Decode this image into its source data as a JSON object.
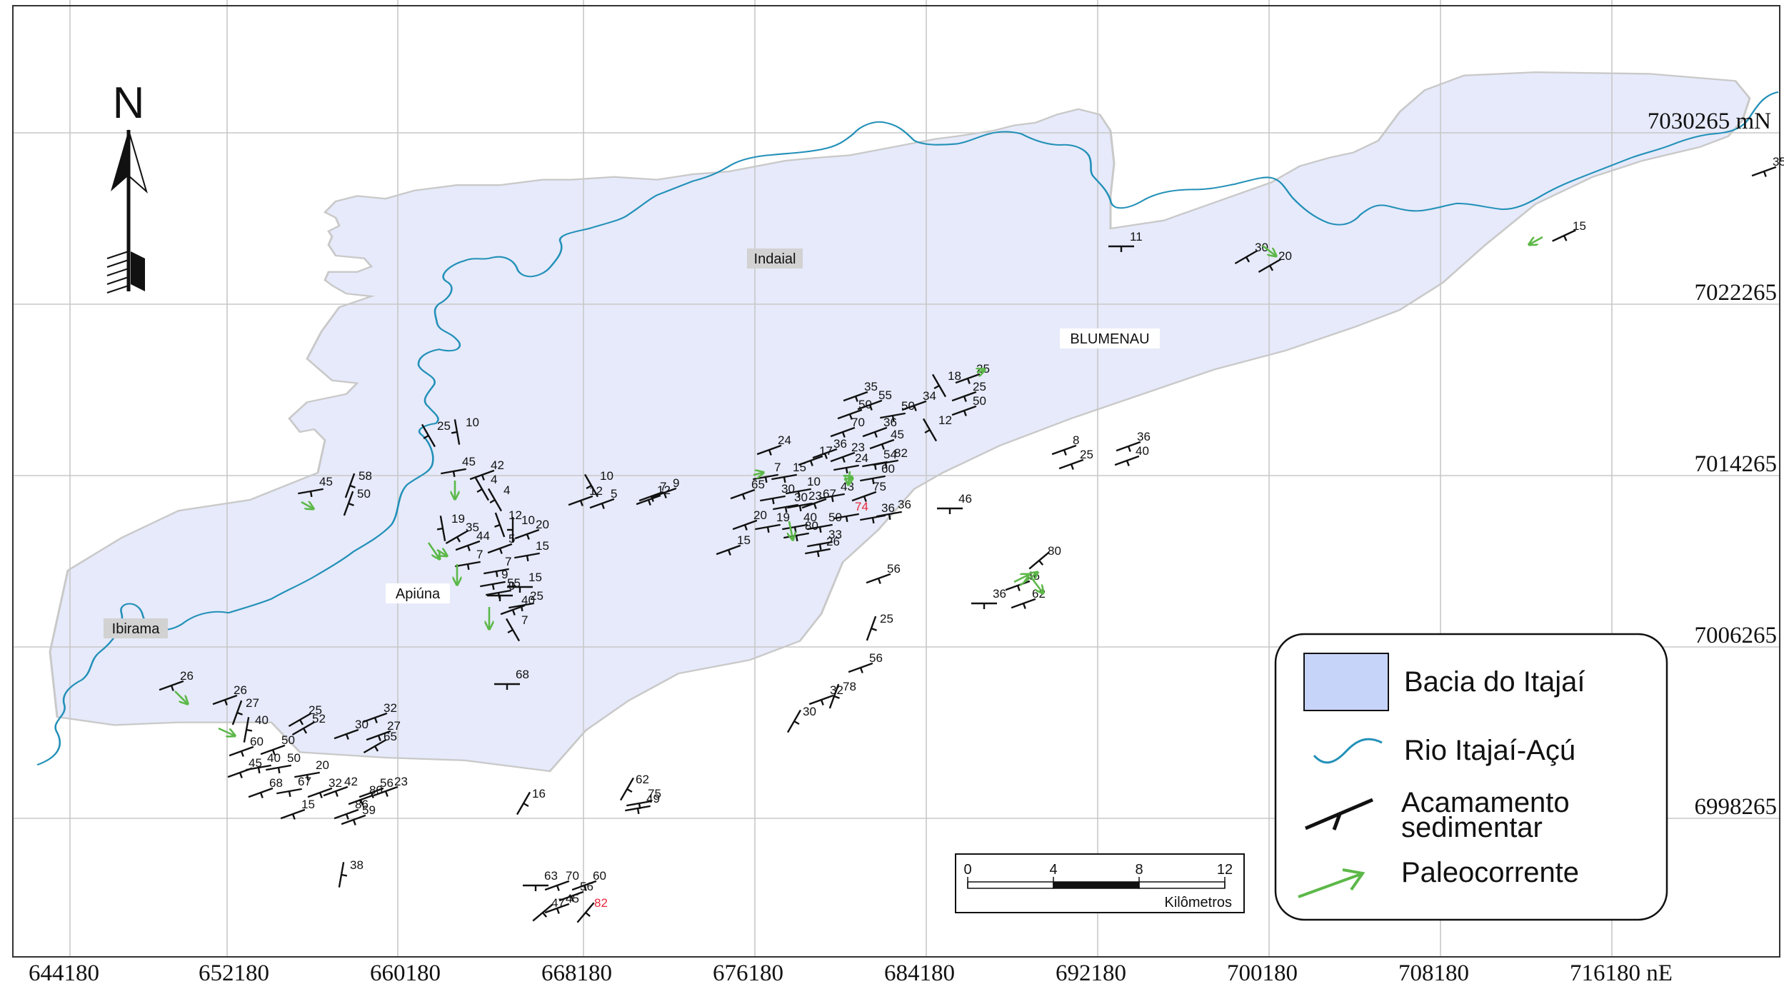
{
  "map": {
    "north_label": "N",
    "easting_labels": [
      "644180",
      "652180",
      "660180",
      "668180",
      "676180",
      "684180",
      "692180",
      "700180",
      "708180",
      "716180 nE"
    ],
    "northing_labels": [
      "7030265 mN",
      "7022265",
      "7014265",
      "7006265",
      "6998265"
    ],
    "towns": [
      {
        "name": "Indaial",
        "boxed": true
      },
      {
        "name": "BLUMENAU",
        "boxed": false
      },
      {
        "name": "Apiúna",
        "boxed": false
      },
      {
        "name": "Ibirama",
        "boxed": true
      }
    ],
    "bedding_dips": [
      "11",
      "30",
      "20",
      "15",
      "35",
      "25",
      "10",
      "45",
      "42",
      "58",
      "50",
      "45",
      "4",
      "4",
      "12",
      "10",
      "20",
      "19",
      "35",
      "44",
      "5",
      "15",
      "7",
      "7",
      "9",
      "15",
      "9",
      "25",
      "55",
      "40",
      "7",
      "10",
      "12",
      "5",
      "12",
      "9",
      "7",
      "24",
      "7",
      "15",
      "10",
      "65",
      "30",
      "20",
      "19",
      "30",
      "23",
      "40",
      "50",
      "80",
      "33",
      "26",
      "15",
      "17",
      "36",
      "23",
      "24",
      "54",
      "82",
      "60",
      "43",
      "75",
      "67",
      "74",
      "36",
      "36",
      "35",
      "50",
      "55",
      "50",
      "70",
      "36",
      "45",
      "34",
      "18",
      "25",
      "25",
      "50",
      "12",
      "8",
      "25",
      "36",
      "40",
      "46",
      "56",
      "46",
      "80",
      "62",
      "36",
      "25",
      "56",
      "32",
      "78",
      "30",
      "68",
      "26",
      "26",
      "27",
      "40",
      "60",
      "45",
      "50",
      "40",
      "68",
      "50",
      "67",
      "20",
      "15",
      "32",
      "42",
      "25",
      "52",
      "30",
      "32",
      "27",
      "65",
      "80",
      "56",
      "23",
      "86",
      "59",
      "38",
      "16",
      "62",
      "75",
      "49",
      "63",
      "70",
      "60",
      "56",
      "47",
      "45",
      "82"
    ],
    "colors": {
      "basin_fill": "#e6eafa",
      "basin_outline": "#c9c9c9",
      "river": "#2290b8",
      "bedding": "#111111",
      "paleocurrent": "#5cb848",
      "high_dip": "#e8273a",
      "grid": "#c8c8c8"
    }
  },
  "scale_bar": {
    "ticks": [
      "0",
      "4",
      "8",
      "12"
    ],
    "unit": "Kilômetros"
  },
  "legend": {
    "items": [
      {
        "label": "Bacia do Itajaí",
        "symbol": "basin-swatch"
      },
      {
        "label": "Rio Itajaí-Açú",
        "symbol": "river-line"
      },
      {
        "label_line1": "Acamamento",
        "label_line2": "sedimentar",
        "symbol": "strike-dip-symbol"
      },
      {
        "label": "Paleocorrente",
        "symbol": "arrow"
      }
    ]
  }
}
